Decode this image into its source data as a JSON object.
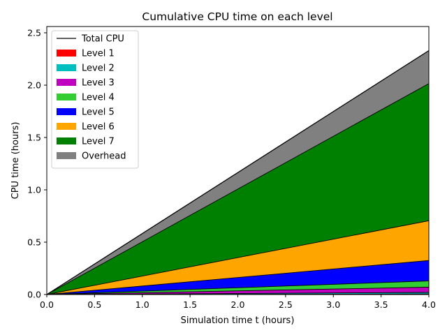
{
  "chart_data": {
    "type": "area",
    "title": "Cumulative CPU time on each level",
    "xlabel": "Simulation time t (hours)",
    "ylabel": "CPU time (hours)",
    "xlim": [
      0.0,
      4.0
    ],
    "ylim": [
      0.0,
      2.56
    ],
    "xticks": [
      "0.0",
      "0.5",
      "1.0",
      "1.5",
      "2.0",
      "2.5",
      "3.0",
      "3.5",
      "4.0"
    ],
    "yticks": [
      "0.0",
      "0.5",
      "1.0",
      "1.5",
      "2.0",
      "2.5"
    ],
    "grid": false,
    "legend_position": "top-left",
    "x": [
      0.0,
      4.0
    ],
    "total": {
      "name": "Total CPU",
      "color": "#000000",
      "values": [
        0.0,
        2.33
      ]
    },
    "series": [
      {
        "name": "Level 1",
        "color": "#ff0000",
        "values": [
          0.0,
          0.005
        ]
      },
      {
        "name": "Level 2",
        "color": "#00bfbf",
        "values": [
          0.0,
          0.015
        ]
      },
      {
        "name": "Level 3",
        "color": "#bf00bf",
        "values": [
          0.0,
          0.05
        ]
      },
      {
        "name": "Level 4",
        "color": "#32cd32",
        "values": [
          0.0,
          0.06
        ]
      },
      {
        "name": "Level 5",
        "color": "#0000ff",
        "values": [
          0.0,
          0.195
        ]
      },
      {
        "name": "Level 6",
        "color": "#ffa500",
        "values": [
          0.0,
          0.38
        ]
      },
      {
        "name": "Level 7",
        "color": "#008000",
        "values": [
          0.0,
          1.31
        ]
      },
      {
        "name": "Overhead",
        "color": "#808080",
        "values": [
          0.0,
          0.315
        ]
      }
    ]
  }
}
